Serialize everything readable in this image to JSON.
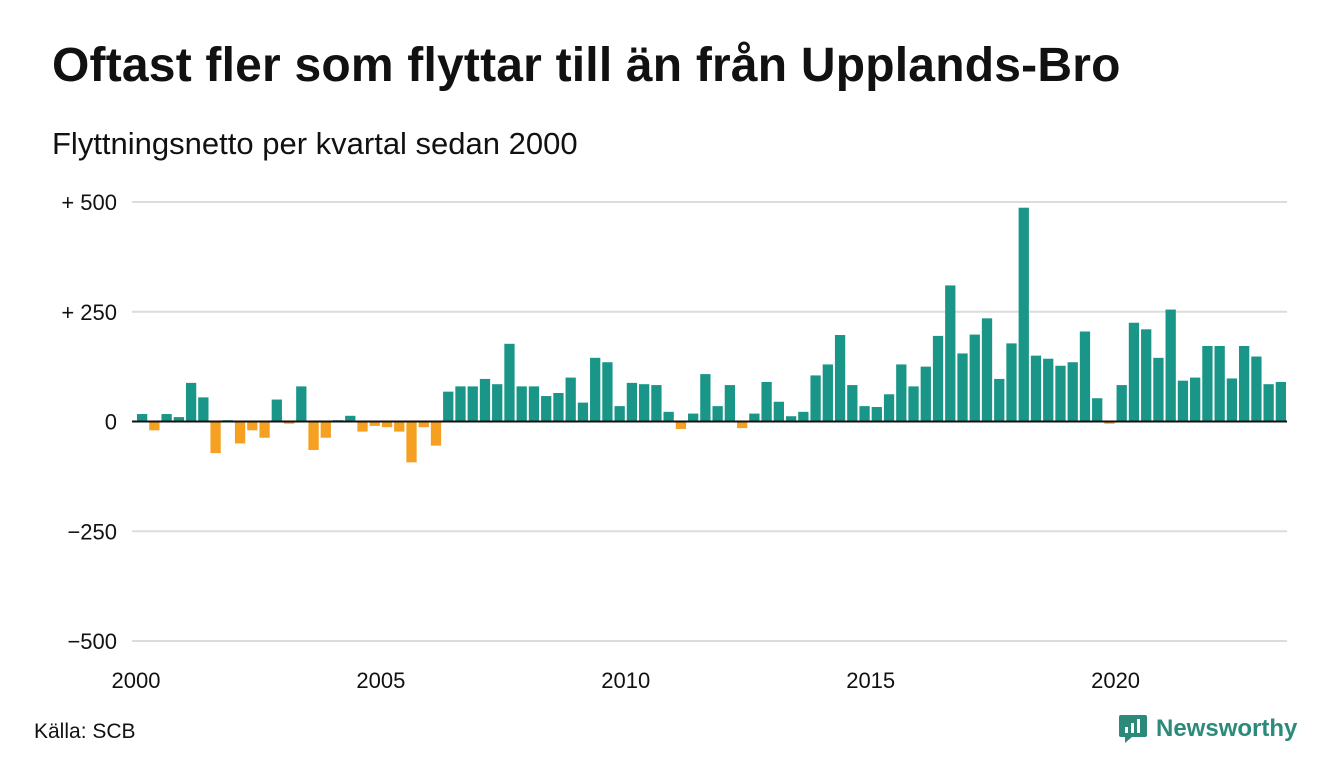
{
  "header": {
    "title": "Oftast fler som flyttar till än från Upplands-Bro",
    "subtitle": "Flyttningsnetto per kvartal sedan 2000"
  },
  "footer": {
    "source": "Källa: SCB",
    "brand": "Newsworthy"
  },
  "colors": {
    "positive": "#1a9688",
    "negative": "#f5a021",
    "grid": "#dcdcdc",
    "zero_line": "#111111",
    "brand": "#2b8a7a"
  },
  "chart_data": {
    "type": "bar",
    "title": "Oftast fler som flyttar till än från Upplands-Bro",
    "subtitle": "Flyttningsnetto per kvartal sedan 2000",
    "xlabel": "",
    "ylabel": "",
    "ylim": [
      -500,
      500
    ],
    "y_ticks": [
      {
        "value": 500,
        "label": "+ 500"
      },
      {
        "value": 250,
        "label": "+ 250"
      },
      {
        "value": 0,
        "label": "0"
      },
      {
        "value": -250,
        "label": "−250"
      },
      {
        "value": -500,
        "label": "−500"
      }
    ],
    "x_ticks": [
      {
        "year": 2000,
        "label": "2000"
      },
      {
        "year": 2005,
        "label": "2005"
      },
      {
        "year": 2010,
        "label": "2010"
      },
      {
        "year": 2015,
        "label": "2015"
      },
      {
        "year": 2020,
        "label": "2020"
      }
    ],
    "grid": true,
    "legend": false,
    "series": [
      {
        "start": "2000 Q1",
        "frequency": "quarterly",
        "values": [
          17,
          -20,
          17,
          10,
          88,
          55,
          -72,
          3,
          -50,
          -20,
          -37,
          50,
          -5,
          80,
          -65,
          -37,
          3,
          13,
          -23,
          -10,
          -13,
          -23,
          -93,
          -13,
          -55,
          68,
          80,
          80,
          97,
          85,
          177,
          80,
          80,
          58,
          65,
          100,
          43,
          145,
          135,
          35,
          88,
          85,
          83,
          22,
          -17,
          18,
          108,
          35,
          83,
          -15,
          18,
          90,
          45,
          12,
          22,
          105,
          130,
          197,
          83,
          35,
          33,
          62,
          130,
          80,
          125,
          195,
          310,
          155,
          198,
          235,
          97,
          178,
          487,
          150,
          143,
          127,
          135,
          205,
          53,
          -5,
          83,
          225,
          210,
          145,
          255,
          93,
          100,
          172,
          172,
          98,
          172,
          148,
          85,
          90
        ]
      }
    ]
  }
}
